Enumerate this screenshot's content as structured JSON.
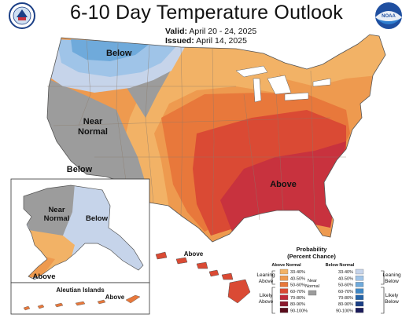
{
  "header": {
    "title": "6-10 Day Temperature Outlook",
    "valid_label": "Valid:",
    "valid_value": "April 20 - 24, 2025",
    "issued_label": "Issued:",
    "issued_value": "April 14, 2025"
  },
  "map_labels": {
    "below_nw": "Below",
    "near_normal_line1": "Near",
    "near_normal_line2": "Normal",
    "below_sw": "Below",
    "above_se": "Above",
    "alaska_near_line1": "Near",
    "alaska_near_line2": "Normal",
    "alaska_below": "Below",
    "alaska_above": "Above",
    "hawaii_above": "Above",
    "aleutian_title": "Aleutian Islands",
    "aleutian_above": "Above"
  },
  "legend": {
    "title_line1": "Probability",
    "title_line2": "(Percent Chance)",
    "above_header": "Above Normal",
    "below_header": "Below Normal",
    "leaning_above_1": "Leaning",
    "leaning_above_2": "Above",
    "likely_above_1": "Likely",
    "likely_above_2": "Above",
    "near_normal_1": "Near",
    "near_normal_2": "Normal",
    "leaning_below_1": "Leaning",
    "leaning_below_2": "Below",
    "likely_below_1": "Likely",
    "likely_below_2": "Below",
    "above_bins": [
      {
        "label": "33-40%",
        "color": "#f2b266"
      },
      {
        "label": "40-50%",
        "color": "#ee9a4f"
      },
      {
        "label": "50-60%",
        "color": "#e8783b"
      },
      {
        "label": "60-70%",
        "color": "#da4a34"
      },
      {
        "label": "70-80%",
        "color": "#c02a3a"
      },
      {
        "label": "80-90%",
        "color": "#8c1a2e"
      },
      {
        "label": "90-100%",
        "color": "#5a0c1c"
      }
    ],
    "below_bins": [
      {
        "label": "33-40%",
        "color": "#c6d4ea"
      },
      {
        "label": "40-50%",
        "color": "#9fc4e8"
      },
      {
        "label": "50-60%",
        "color": "#6faadb"
      },
      {
        "label": "60-70%",
        "color": "#3f88c6"
      },
      {
        "label": "70-80%",
        "color": "#2564a8"
      },
      {
        "label": "80-90%",
        "color": "#1b3f86"
      },
      {
        "label": "90-100%",
        "color": "#1c1c5a"
      }
    ],
    "near_color": "#9c9c9c"
  },
  "colors": {
    "near": "#9c9c9c",
    "below1": "#c6d4ea",
    "below2": "#9fc4e8",
    "below3": "#6faadb",
    "above1": "#f2b266",
    "above2": "#ee9a4f",
    "above3": "#e8783b",
    "above4": "#da4a34",
    "above5": "#c8323e"
  },
  "logos": {
    "commerce": "department-of-commerce-seal",
    "noaa": "NOAA"
  }
}
